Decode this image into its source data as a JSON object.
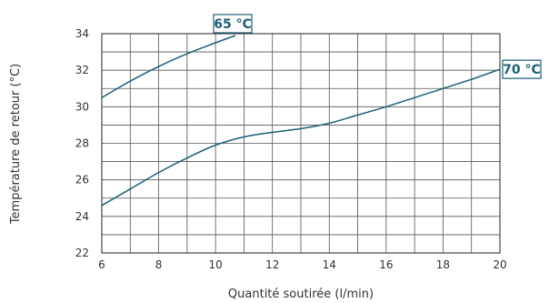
{
  "chart_data": {
    "type": "line",
    "title": "",
    "xlabel": "Quantité soutirée (l/min)",
    "ylabel": "Température de retour (°C)",
    "xlim": [
      6,
      20
    ],
    "ylim": [
      22,
      34
    ],
    "x_ticks": [
      6,
      8,
      10,
      12,
      14,
      16,
      18,
      20
    ],
    "y_ticks": [
      22,
      24,
      26,
      28,
      30,
      32,
      34
    ],
    "x_tick_labels": [
      "6",
      "8",
      "10",
      "12",
      "14",
      "16",
      "18",
      "20"
    ],
    "y_tick_labels": [
      "22",
      "24",
      "26",
      "28",
      "30",
      "32",
      "34"
    ],
    "grid": true,
    "line_color": "#1d5f78",
    "series": [
      {
        "name": "65 °C",
        "x": [
          6,
          7,
          8,
          9,
          10,
          10.7
        ],
        "y": [
          30.5,
          31.4,
          32.2,
          32.9,
          33.5,
          33.9
        ]
      },
      {
        "name": "70 °C",
        "x": [
          6,
          7,
          8,
          9,
          10,
          11,
          12,
          13,
          14,
          15,
          16,
          17,
          18,
          19,
          20
        ],
        "y": [
          24.6,
          25.5,
          26.4,
          27.2,
          27.9,
          28.35,
          28.6,
          28.8,
          29.1,
          29.55,
          30.0,
          30.5,
          31.0,
          31.5,
          32.05
        ]
      }
    ]
  }
}
